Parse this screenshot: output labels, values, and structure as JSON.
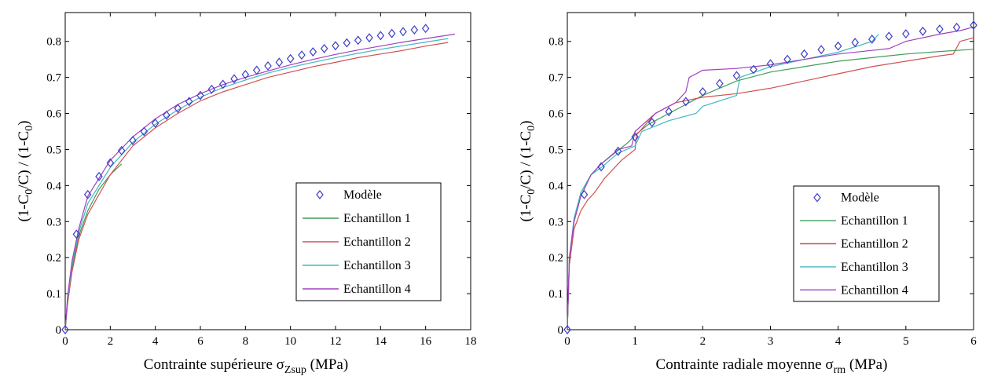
{
  "colors": {
    "model": "#3c3cc8",
    "s1": "#3f9e5a",
    "s2": "#d05050",
    "s3": "#40b8c0",
    "s4": "#a040c0"
  },
  "chart_data": [
    {
      "type": "line",
      "xlabel_prefix": "Contrainte supérieure ",
      "xlabel_symbol": "σ",
      "xlabel_sub": "Zsup",
      "xlabel_suffix": " (MPa)",
      "ylabel": {
        "a": "(1-C",
        "a_sub": "0",
        "b": "/C) / (1-C",
        "b_sub": "0",
        "c": ")"
      },
      "xlim": [
        0,
        18
      ],
      "ylim": [
        0,
        0.88
      ],
      "xticks": [
        "0",
        "2",
        "4",
        "6",
        "8",
        "10",
        "12",
        "14",
        "16",
        "18"
      ],
      "yticks": [
        "0",
        "0.1",
        "0.2",
        "0.3",
        "0.4",
        "0.5",
        "0.6",
        "0.7",
        "0.8"
      ],
      "legend_position": "bottom-right",
      "series": [
        {
          "name": "Modèle",
          "kind": "marker",
          "color_key": "model",
          "x": [
            0,
            0.5,
            1,
            1.5,
            2,
            2.5,
            3,
            3.5,
            4,
            4.5,
            5,
            5.5,
            6,
            6.5,
            7,
            7.5,
            8,
            8.5,
            9,
            9.5,
            10,
            10.5,
            11,
            11.5,
            12,
            12.5,
            13,
            13.5,
            14,
            14.5,
            15,
            15.5,
            16
          ],
          "y": [
            0,
            0.265,
            0.375,
            0.425,
            0.463,
            0.497,
            0.525,
            0.55,
            0.573,
            0.595,
            0.614,
            0.633,
            0.65,
            0.667,
            0.681,
            0.696,
            0.708,
            0.72,
            0.732,
            0.742,
            0.752,
            0.762,
            0.771,
            0.78,
            0.788,
            0.796,
            0.803,
            0.81,
            0.816,
            0.822,
            0.827,
            0.832,
            0.836
          ]
        },
        {
          "name": "Echantillon 1",
          "kind": "line",
          "color_key": "s1",
          "x": [
            0,
            0.1,
            0.3,
            0.6,
            1,
            1.5,
            2,
            2.5
          ],
          "y": [
            0,
            0.08,
            0.17,
            0.26,
            0.33,
            0.39,
            0.43,
            0.46
          ]
        },
        {
          "name": "Echantillon 2",
          "kind": "line",
          "color_key": "s2",
          "x": [
            0,
            0.1,
            0.3,
            0.6,
            1,
            2,
            3,
            4,
            5,
            6,
            7,
            8,
            9,
            10,
            11,
            12,
            13,
            14,
            15,
            16,
            17
          ],
          "y": [
            0,
            0.07,
            0.16,
            0.25,
            0.32,
            0.43,
            0.51,
            0.56,
            0.6,
            0.635,
            0.66,
            0.68,
            0.7,
            0.715,
            0.73,
            0.742,
            0.755,
            0.765,
            0.775,
            0.787,
            0.797
          ]
        },
        {
          "name": "Echantillon 3",
          "kind": "line",
          "color_key": "s3",
          "x": [
            0,
            0.1,
            0.3,
            0.6,
            1,
            2,
            3,
            4,
            5,
            6,
            7,
            8,
            9,
            10,
            11,
            12,
            13,
            14,
            15,
            16,
            17
          ],
          "y": [
            0,
            0.08,
            0.18,
            0.27,
            0.35,
            0.45,
            0.52,
            0.57,
            0.61,
            0.645,
            0.672,
            0.693,
            0.712,
            0.728,
            0.742,
            0.755,
            0.767,
            0.778,
            0.788,
            0.798,
            0.808
          ]
        },
        {
          "name": "Echantillon 4",
          "kind": "line",
          "color_key": "s4",
          "x": [
            0,
            0.1,
            0.3,
            0.6,
            1,
            2,
            3,
            4,
            5,
            6,
            7,
            8,
            9,
            10,
            11,
            12,
            13,
            14,
            15,
            16,
            17.3
          ],
          "y": [
            0,
            0.09,
            0.19,
            0.28,
            0.37,
            0.47,
            0.535,
            0.585,
            0.625,
            0.655,
            0.68,
            0.7,
            0.718,
            0.735,
            0.75,
            0.764,
            0.776,
            0.787,
            0.798,
            0.808,
            0.82
          ]
        }
      ]
    },
    {
      "type": "line",
      "xlabel_prefix": "Contrainte radiale moyenne ",
      "xlabel_symbol": "σ",
      "xlabel_sub": "rm",
      "xlabel_suffix": " (MPa)",
      "ylabel": {
        "a": "(1-C",
        "a_sub": "0",
        "b": "/C) / (1-C",
        "b_sub": "0",
        "c": ")"
      },
      "xlim": [
        0,
        6
      ],
      "ylim": [
        0,
        0.88
      ],
      "xticks": [
        "0",
        "1",
        "2",
        "3",
        "4",
        "5",
        "6"
      ],
      "yticks": [
        "0",
        "0.1",
        "0.2",
        "0.3",
        "0.4",
        "0.5",
        "0.6",
        "0.7",
        "0.8"
      ],
      "legend_position": "bottom-right",
      "series": [
        {
          "name": "Modèle",
          "kind": "marker",
          "color_key": "model",
          "x": [
            0,
            0.25,
            0.5,
            0.75,
            1,
            1.25,
            1.5,
            1.75,
            2,
            2.25,
            2.5,
            2.75,
            3,
            3.25,
            3.5,
            3.75,
            4,
            4.25,
            4.5,
            4.75,
            5,
            5.25,
            5.5,
            5.75,
            6
          ],
          "y": [
            0,
            0.375,
            0.452,
            0.495,
            0.535,
            0.575,
            0.605,
            0.633,
            0.66,
            0.683,
            0.705,
            0.722,
            0.738,
            0.75,
            0.765,
            0.777,
            0.787,
            0.797,
            0.806,
            0.814,
            0.821,
            0.828,
            0.834,
            0.839,
            0.845
          ]
        },
        {
          "name": "Echantillon 1",
          "kind": "line",
          "color_key": "s1",
          "x": [
            0,
            0.03,
            0.1,
            0.2,
            0.35,
            0.5,
            0.7,
            0.9,
            1,
            1.2,
            1.5,
            2,
            2.5,
            3,
            3.5,
            4,
            4.5,
            5,
            5.5,
            6
          ],
          "y": [
            0,
            0.2,
            0.3,
            0.38,
            0.43,
            0.46,
            0.49,
            0.52,
            0.54,
            0.57,
            0.6,
            0.65,
            0.69,
            0.715,
            0.73,
            0.745,
            0.755,
            0.765,
            0.772,
            0.778
          ]
        },
        {
          "name": "Echantillon 2",
          "kind": "line",
          "color_key": "s2",
          "x": [
            0,
            0.03,
            0.1,
            0.2,
            0.3,
            0.4,
            0.55,
            0.8,
            1,
            1.02,
            1.3,
            1.6,
            2,
            2.5,
            3,
            3.5,
            4,
            4.5,
            5,
            5.5,
            5.7,
            5.8,
            5.9,
            6
          ],
          "y": [
            0,
            0.18,
            0.28,
            0.33,
            0.36,
            0.38,
            0.42,
            0.47,
            0.5,
            0.54,
            0.6,
            0.63,
            0.645,
            0.655,
            0.67,
            0.69,
            0.71,
            0.73,
            0.745,
            0.76,
            0.765,
            0.8,
            0.805,
            0.81
          ]
        },
        {
          "name": "Echantillon 3",
          "kind": "line",
          "color_key": "s3",
          "x": [
            0,
            0.03,
            0.1,
            0.2,
            0.35,
            0.5,
            0.75,
            1,
            1.1,
            1.5,
            1.9,
            2,
            2.5,
            2.55,
            3,
            3.5,
            4,
            4.5,
            4.6
          ],
          "y": [
            0,
            0.2,
            0.31,
            0.38,
            0.43,
            0.45,
            0.49,
            0.51,
            0.55,
            0.58,
            0.6,
            0.62,
            0.65,
            0.7,
            0.73,
            0.75,
            0.77,
            0.8,
            0.82
          ]
        },
        {
          "name": "Echantillon 4",
          "kind": "line",
          "color_key": "s4",
          "x": [
            0,
            0.03,
            0.1,
            0.2,
            0.35,
            0.5,
            0.75,
            0.95,
            1,
            1.3,
            1.6,
            1.75,
            1.8,
            2,
            2.5,
            3,
            3.5,
            4,
            4.5,
            4.75,
            5,
            5.5,
            5.8,
            6
          ],
          "y": [
            0,
            0.2,
            0.3,
            0.37,
            0.43,
            0.46,
            0.5,
            0.51,
            0.55,
            0.6,
            0.63,
            0.66,
            0.7,
            0.72,
            0.725,
            0.735,
            0.75,
            0.765,
            0.775,
            0.78,
            0.8,
            0.82,
            0.83,
            0.84
          ]
        }
      ]
    }
  ]
}
